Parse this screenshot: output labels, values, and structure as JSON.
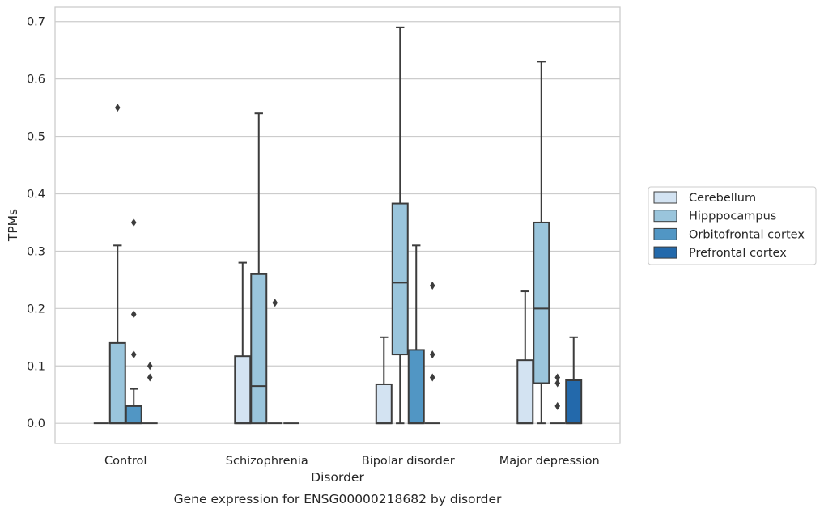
{
  "caption": "Gene expression for ENSG00000218682 by disorder",
  "colors": {
    "Cerebellum": "#d3e3f2",
    "Hipppocampus": "#9ac5dc",
    "Orbitofrontal cortex": "#5196c4",
    "Prefrontal cortex": "#2369ab",
    "edge": "#3c3c3c",
    "grid": "#cccccc",
    "frame": "#cccccc"
  },
  "chart_data": {
    "type": "box",
    "title": "",
    "xlabel": "Disorder",
    "ylabel": "TPMs",
    "ylim": [
      -0.035,
      0.725
    ],
    "yticks": [
      0.0,
      0.1,
      0.2,
      0.3,
      0.4,
      0.5,
      0.6,
      0.7
    ],
    "ytick_labels": [
      "0.0",
      "0.1",
      "0.2",
      "0.3",
      "0.4",
      "0.5",
      "0.6",
      "0.7"
    ],
    "grid": true,
    "legend_position": "right",
    "categories": [
      "Control",
      "Schizophrenia",
      "Bipolar disorder",
      "Major depression"
    ],
    "series": [
      {
        "name": "Cerebellum",
        "boxes": [
          {
            "q1": 0.0,
            "median": 0.0,
            "q3": 0.0,
            "whislo": 0.0,
            "whishi": 0.0,
            "fliers": []
          },
          {
            "q1": 0.0,
            "median": 0.0,
            "q3": 0.117,
            "whislo": 0.0,
            "whishi": 0.28,
            "fliers": []
          },
          {
            "q1": 0.0,
            "median": 0.0,
            "q3": 0.068,
            "whislo": 0.0,
            "whishi": 0.15,
            "fliers": []
          },
          {
            "q1": 0.0,
            "median": 0.0,
            "q3": 0.11,
            "whislo": 0.0,
            "whishi": 0.23,
            "fliers": []
          }
        ]
      },
      {
        "name": "Hipppocampus",
        "boxes": [
          {
            "q1": 0.0,
            "median": 0.0,
            "q3": 0.14,
            "whislo": 0.0,
            "whishi": 0.31,
            "fliers": [
              0.55
            ]
          },
          {
            "q1": 0.0,
            "median": 0.065,
            "q3": 0.26,
            "whislo": 0.0,
            "whishi": 0.54,
            "fliers": []
          },
          {
            "q1": 0.12,
            "median": 0.245,
            "q3": 0.383,
            "whislo": 0.0,
            "whishi": 0.69,
            "fliers": []
          },
          {
            "q1": 0.07,
            "median": 0.2,
            "q3": 0.35,
            "whislo": 0.0,
            "whishi": 0.63,
            "fliers": []
          }
        ]
      },
      {
        "name": "Orbitofrontal cortex",
        "boxes": [
          {
            "q1": 0.0,
            "median": 0.0,
            "q3": 0.03,
            "whislo": 0.0,
            "whishi": 0.06,
            "fliers": [
              0.35,
              0.19,
              0.12
            ]
          },
          {
            "q1": 0.0,
            "median": 0.0,
            "q3": 0.0,
            "whislo": 0.0,
            "whishi": 0.0,
            "fliers": [
              0.21
            ]
          },
          {
            "q1": 0.0,
            "median": 0.0,
            "q3": 0.128,
            "whislo": 0.0,
            "whishi": 0.31,
            "fliers": []
          },
          {
            "q1": 0.0,
            "median": 0.0,
            "q3": 0.0,
            "whislo": 0.0,
            "whishi": 0.0,
            "fliers": [
              0.08,
              0.07,
              0.03
            ]
          }
        ]
      },
      {
        "name": "Prefrontal cortex",
        "boxes": [
          {
            "q1": 0.0,
            "median": 0.0,
            "q3": 0.0,
            "whislo": 0.0,
            "whishi": 0.0,
            "fliers": [
              0.1,
              0.08
            ]
          },
          {
            "q1": 0.0,
            "median": 0.0,
            "q3": 0.0,
            "whislo": 0.0,
            "whishi": 0.0,
            "fliers": []
          },
          {
            "q1": 0.0,
            "median": 0.0,
            "q3": 0.0,
            "whislo": 0.0,
            "whishi": 0.0,
            "fliers": [
              0.24,
              0.12,
              0.08
            ]
          },
          {
            "q1": 0.0,
            "median": 0.0,
            "q3": 0.075,
            "whislo": 0.0,
            "whishi": 0.15,
            "fliers": []
          }
        ]
      }
    ]
  }
}
